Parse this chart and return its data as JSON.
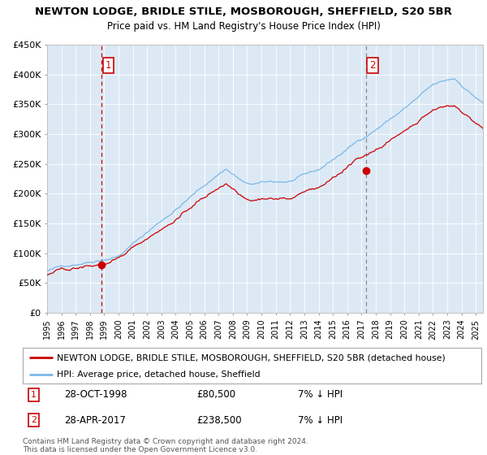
{
  "title1": "NEWTON LODGE, BRIDLE STILE, MOSBOROUGH, SHEFFIELD, S20 5BR",
  "title2": "Price paid vs. HM Land Registry's House Price Index (HPI)",
  "bg_color": "#dce9f5",
  "hpi_color": "#7ab8e8",
  "price_color": "#cc0000",
  "marker_color": "#cc0000",
  "vline1_color": "#cc0000",
  "vline2_color": "#888888",
  "ylim": [
    0,
    450000
  ],
  "yticks": [
    0,
    50000,
    100000,
    150000,
    200000,
    250000,
    300000,
    350000,
    400000,
    450000
  ],
  "ytick_labels": [
    "£0",
    "£50K",
    "£100K",
    "£150K",
    "£200K",
    "£250K",
    "£300K",
    "£350K",
    "£400K",
    "£450K"
  ],
  "sale1_date": 1998.83,
  "sale1_price": 80500,
  "sale2_date": 2017.32,
  "sale2_price": 238500,
  "legend_label1": "NEWTON LODGE, BRIDLE STILE, MOSBOROUGH, SHEFFIELD, S20 5BR (detached house)",
  "legend_label2": "HPI: Average price, detached house, Sheffield",
  "note1_label": "1",
  "note1_date": "28-OCT-1998",
  "note1_price": "£80,500",
  "note1_hpi": "7% ↓ HPI",
  "note2_label": "2",
  "note2_date": "28-APR-2017",
  "note2_price": "£238,500",
  "note2_hpi": "7% ↓ HPI",
  "footer": "Contains HM Land Registry data © Crown copyright and database right 2024.\nThis data is licensed under the Open Government Licence v3.0.",
  "xlim_start": 1995.0,
  "xlim_end": 2025.5,
  "xtick_years": [
    1995,
    1996,
    1997,
    1998,
    1999,
    2000,
    2001,
    2002,
    2003,
    2004,
    2005,
    2006,
    2007,
    2008,
    2009,
    2010,
    2011,
    2012,
    2013,
    2014,
    2015,
    2016,
    2017,
    2018,
    2019,
    2020,
    2021,
    2022,
    2023,
    2024,
    2025
  ]
}
